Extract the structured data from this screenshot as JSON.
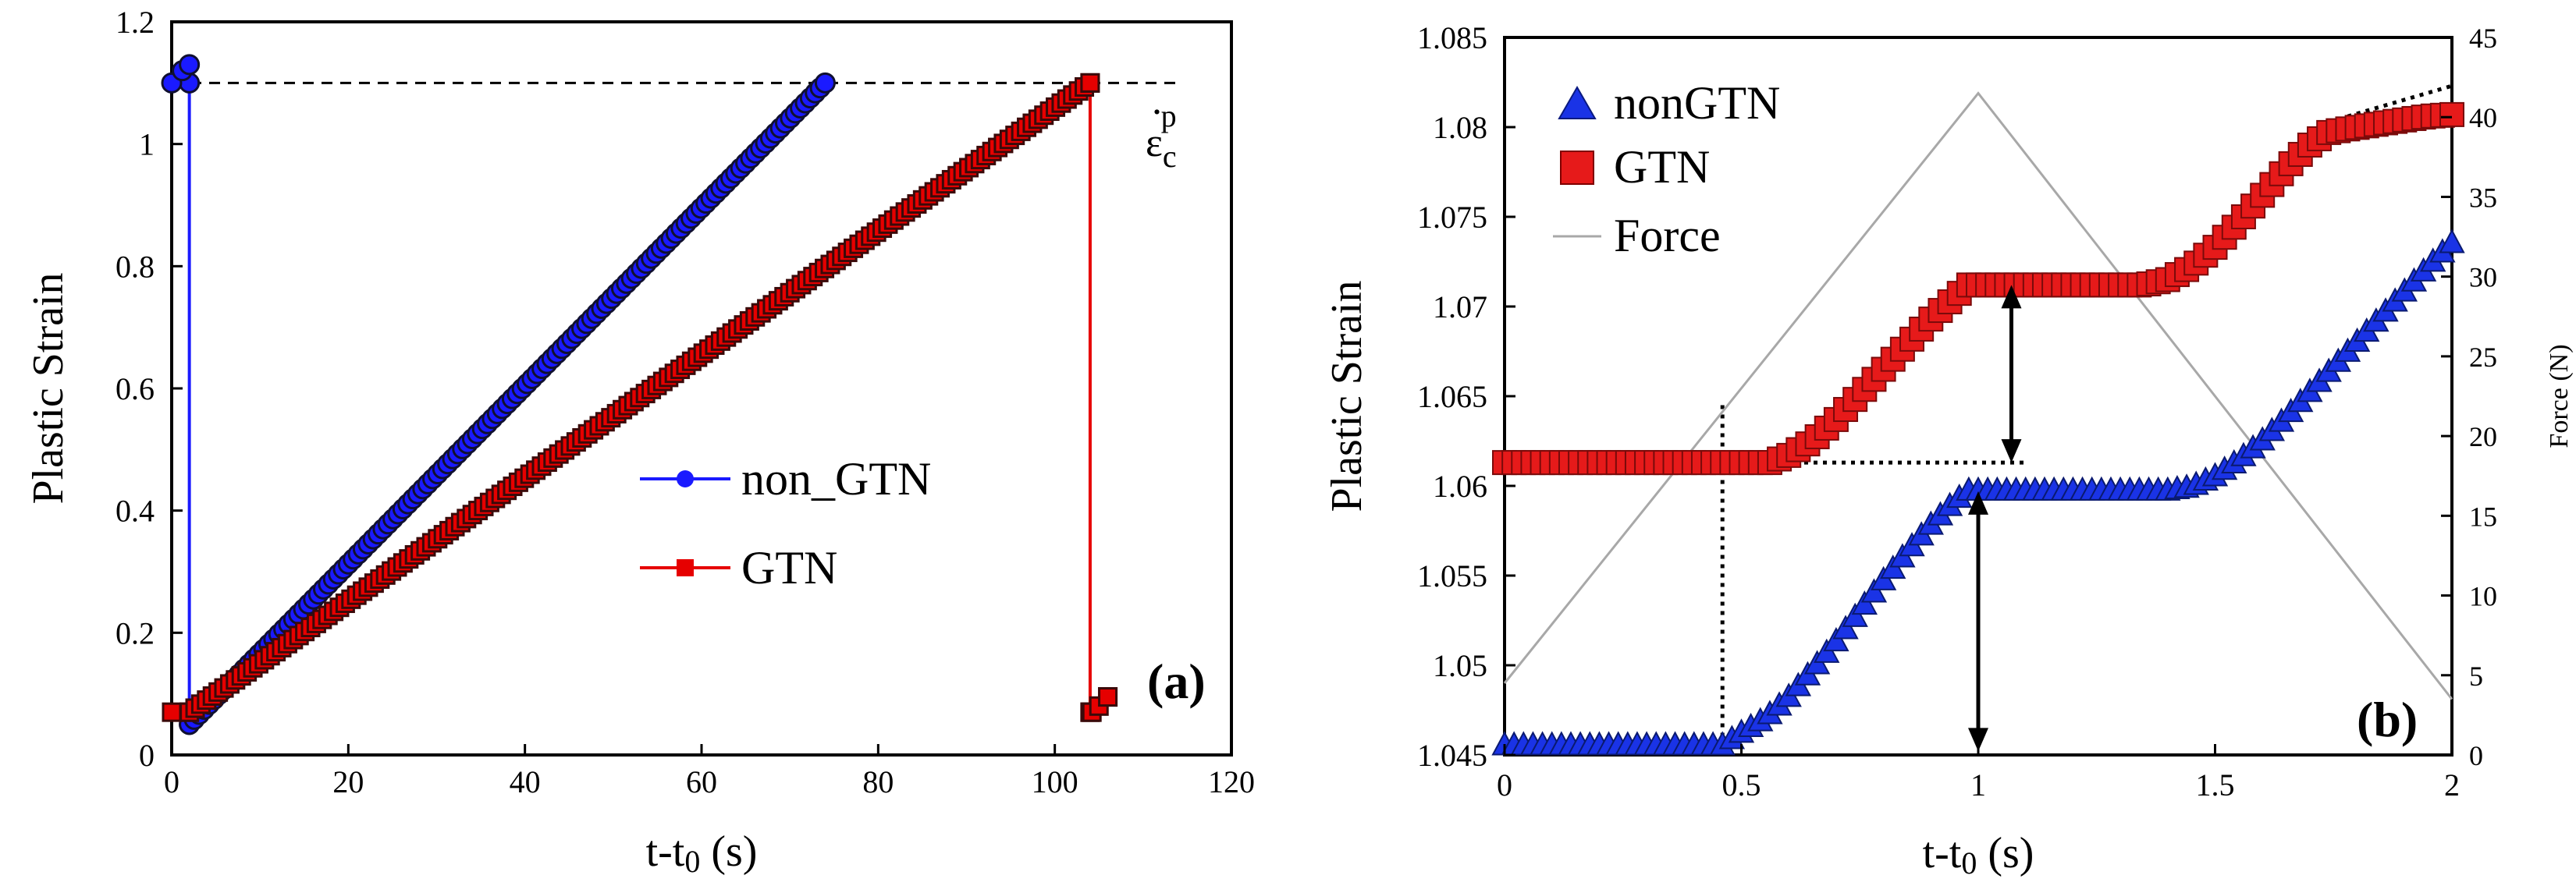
{
  "chart_data": [
    {
      "type": "line",
      "panel_label": "(a)",
      "xlabel_main": "t-t",
      "xlabel_sub": "0",
      "xlabel_unit": " (s)",
      "ylabel": "Plastic Strain",
      "xlim": [
        0,
        120
      ],
      "ylim": [
        0,
        1.2
      ],
      "x_ticks": [
        "0",
        "20",
        "40",
        "60",
        "80",
        "100",
        "120"
      ],
      "y_ticks": [
        "0",
        "0.2",
        "0.4",
        "0.6",
        "0.8",
        "1",
        "1.2"
      ],
      "grid": false,
      "legend_position": "center-right",
      "threshold_label_main": "ε",
      "threshold_label_sub": "c",
      "threshold_label_sup": "p",
      "threshold_value": 1.1,
      "series": [
        {
          "name": "non_GTN",
          "color": "#1a1aff",
          "marker": "circle",
          "segments": [
            {
              "x": [
                0,
                0.6,
                1.2,
                1.8,
                2,
                2
              ],
              "y": [
                1.1,
                1.11,
                1.12,
                1.13,
                1.13,
                1.1
              ]
            },
            {
              "x": [
                2,
                2
              ],
              "y": [
                1.1,
                0.05
              ]
            },
            {
              "x": [
                2,
                74
              ],
              "y": [
                0.05,
                1.1
              ]
            }
          ]
        },
        {
          "name": "GTN",
          "color": "#e60000",
          "marker": "square",
          "segments": [
            {
              "x": [
                0,
                2
              ],
              "y": [
                0.07,
                0.07
              ]
            },
            {
              "x": [
                2,
                104
              ],
              "y": [
                0.07,
                1.1
              ]
            },
            {
              "x": [
                104,
                104
              ],
              "y": [
                1.1,
                0.07
              ]
            },
            {
              "x": [
                104,
                106
              ],
              "y": [
                0.07,
                0.095
              ]
            }
          ]
        }
      ]
    },
    {
      "type": "line",
      "panel_label": "(b)",
      "xlabel_main": "t-t",
      "xlabel_sub": "0",
      "xlabel_unit": " (s)",
      "ylabel": "Plastic Strain",
      "y2label": "Force (N)",
      "xlim": [
        0,
        2
      ],
      "ylim": [
        1.045,
        1.085
      ],
      "y2lim": [
        0,
        45
      ],
      "x_ticks": [
        "0",
        "0.5",
        "1",
        "1.5",
        "2"
      ],
      "y_ticks": [
        "1.045",
        "1.05",
        "1.055",
        "1.06",
        "1.065",
        "1.07",
        "1.075",
        "1.08",
        "1.085"
      ],
      "y2_ticks": [
        "0",
        "5",
        "10",
        "15",
        "20",
        "25",
        "30",
        "35",
        "40",
        "45"
      ],
      "grid": false,
      "legend_position": "top-left",
      "series": [
        {
          "name": "nonGTN",
          "color": "#1a33e6",
          "marker": "triangle",
          "x": [
            0,
            0.1,
            0.2,
            0.3,
            0.4,
            0.46,
            0.5,
            0.55,
            0.6,
            0.65,
            0.7,
            0.75,
            0.8,
            0.85,
            0.9,
            0.95,
            0.98,
            1.05,
            1.1,
            1.2,
            1.3,
            1.4,
            1.45,
            1.5,
            1.55,
            1.6,
            1.65,
            1.7,
            1.75,
            1.8,
            1.85,
            1.9,
            1.95,
            2.0
          ],
          "y": [
            1.0455,
            1.0455,
            1.0455,
            1.0455,
            1.0455,
            1.0455,
            1.0462,
            1.047,
            1.0482,
            1.0497,
            1.0513,
            1.053,
            1.0547,
            1.0563,
            1.0578,
            1.0591,
            1.0597,
            1.0597,
            1.0597,
            1.0597,
            1.0597,
            1.0597,
            1.0599,
            1.0605,
            1.0614,
            1.0625,
            1.0638,
            1.0652,
            1.0666,
            1.068,
            1.0694,
            1.0708,
            1.0722,
            1.0735
          ]
        },
        {
          "name": "GTN",
          "color": "#e61a1a",
          "marker": "square",
          "x": [
            0,
            0.1,
            0.2,
            0.3,
            0.4,
            0.5,
            0.56,
            0.6,
            0.65,
            0.7,
            0.75,
            0.8,
            0.85,
            0.9,
            0.95,
            0.98,
            1.05,
            1.1,
            1.2,
            1.3,
            1.35,
            1.4,
            1.45,
            1.5,
            1.55,
            1.6,
            1.65,
            1.7,
            1.74,
            1.78,
            1.85,
            1.9,
            1.95,
            2.0
          ],
          "y": [
            1.0613,
            1.0613,
            1.0613,
            1.0613,
            1.0613,
            1.0613,
            1.0613,
            1.0617,
            1.0625,
            1.0637,
            1.0651,
            1.0665,
            1.0679,
            1.0693,
            1.0705,
            1.0712,
            1.0712,
            1.0712,
            1.0712,
            1.0712,
            1.0712,
            1.0715,
            1.0722,
            1.0733,
            1.0747,
            1.0762,
            1.0777,
            1.079,
            1.0797,
            1.0799,
            1.0802,
            1.0804,
            1.0806,
            1.0807
          ]
        },
        {
          "name": "Force",
          "color": "#a8a8a8",
          "marker": "none",
          "axis": "y2",
          "x": [
            0,
            1,
            2
          ],
          "y": [
            4.5,
            41.5,
            3.5
          ]
        }
      ]
    }
  ]
}
